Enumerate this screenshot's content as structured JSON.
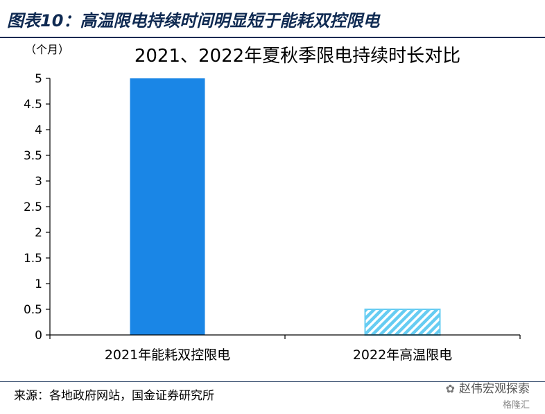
{
  "figure": {
    "title": "图表10：高温限电持续时间明显短于能耗双控限电",
    "source": "来源：各地政府网站，国金证券研究所",
    "watermark": "赵伟宏观探索",
    "watermark_sub": "格隆汇"
  },
  "chart_data": {
    "type": "bar",
    "title": "2021、2022年夏秋季限电持续时长对比",
    "ylabel": "（个月）",
    "xlabel": "",
    "categories": [
      "2021年能耗双控限电",
      "2022年高温限电"
    ],
    "values": [
      5,
      0.5
    ],
    "ylim": [
      0,
      5
    ],
    "yticks": [
      "0",
      "0.5",
      "1",
      "1.5",
      "2",
      "2.5",
      "3",
      "3.5",
      "4",
      "4.5",
      "5"
    ],
    "grid": false,
    "bar_styles": [
      "solid",
      "hatched"
    ],
    "colors": {
      "bar_solid": "#1a86e6",
      "bar_hatch": "#66ccf2",
      "axis": "#000000"
    }
  }
}
